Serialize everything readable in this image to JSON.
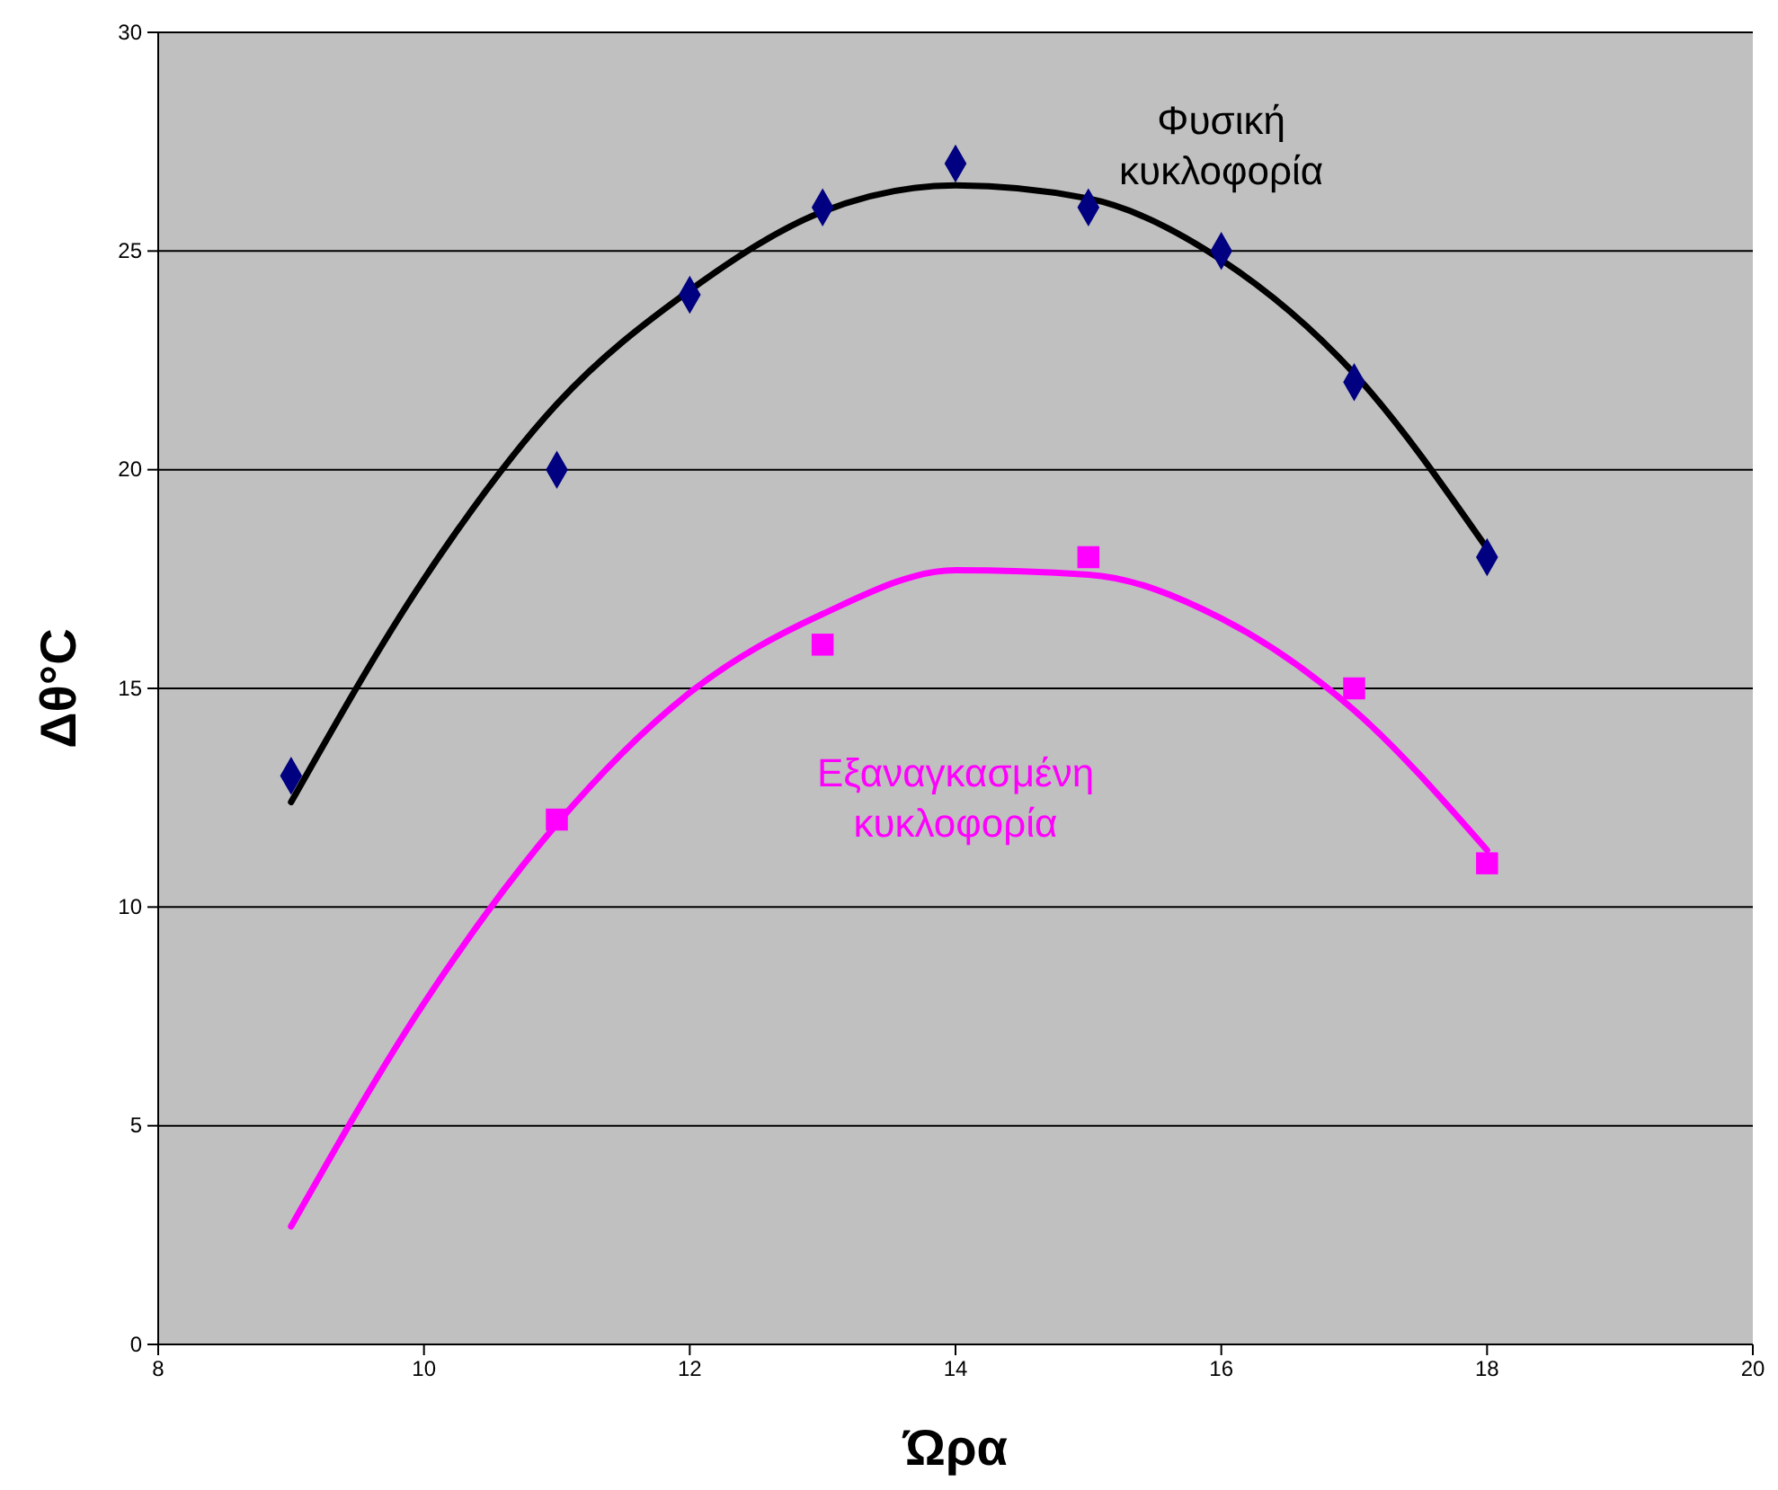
{
  "chart_data": {
    "type": "scatter",
    "xlabel": "Ώρα",
    "ylabel": "Δθ°C",
    "xlim": [
      8,
      20
    ],
    "xticks": [
      8,
      10,
      12,
      14,
      16,
      18,
      20
    ],
    "ylim": [
      0,
      30
    ],
    "yticks": [
      0,
      5,
      10,
      15,
      20,
      25,
      30
    ],
    "grid": "y",
    "series": [
      {
        "marker": "diamond",
        "color": "#000080",
        "x": [
          9,
          11,
          12,
          13,
          14,
          15,
          16,
          17,
          18
        ],
        "values": [
          13,
          20,
          24,
          26,
          27,
          26,
          25,
          22,
          18
        ]
      },
      {
        "marker": "square",
        "color": "#ff00ff",
        "x": [
          11,
          13,
          15,
          17,
          18
        ],
        "values": [
          12,
          16,
          18,
          15,
          11
        ]
      },
      {
        "type": "line",
        "marker": "none",
        "name": "Φυσική κυκλοφορία",
        "color": "#000000",
        "x": [
          9,
          10,
          11,
          12,
          13,
          14,
          15,
          16,
          17,
          18
        ],
        "values": [
          12.4,
          17.5,
          21.5,
          24.1,
          25.9,
          26.5,
          26.2,
          24.8,
          22.2,
          18.2
        ]
      },
      {
        "type": "line",
        "marker": "none",
        "name": "Εξαναγκασμένη κυκλοφορία",
        "color": "#ff00ff",
        "x": [
          9,
          10,
          11,
          12,
          13,
          14,
          15,
          16,
          17,
          18
        ],
        "values": [
          2.7,
          7.8,
          11.9,
          14.9,
          16.7,
          17.7,
          17.6,
          16.6,
          14.5,
          11.3
        ]
      }
    ]
  }
}
